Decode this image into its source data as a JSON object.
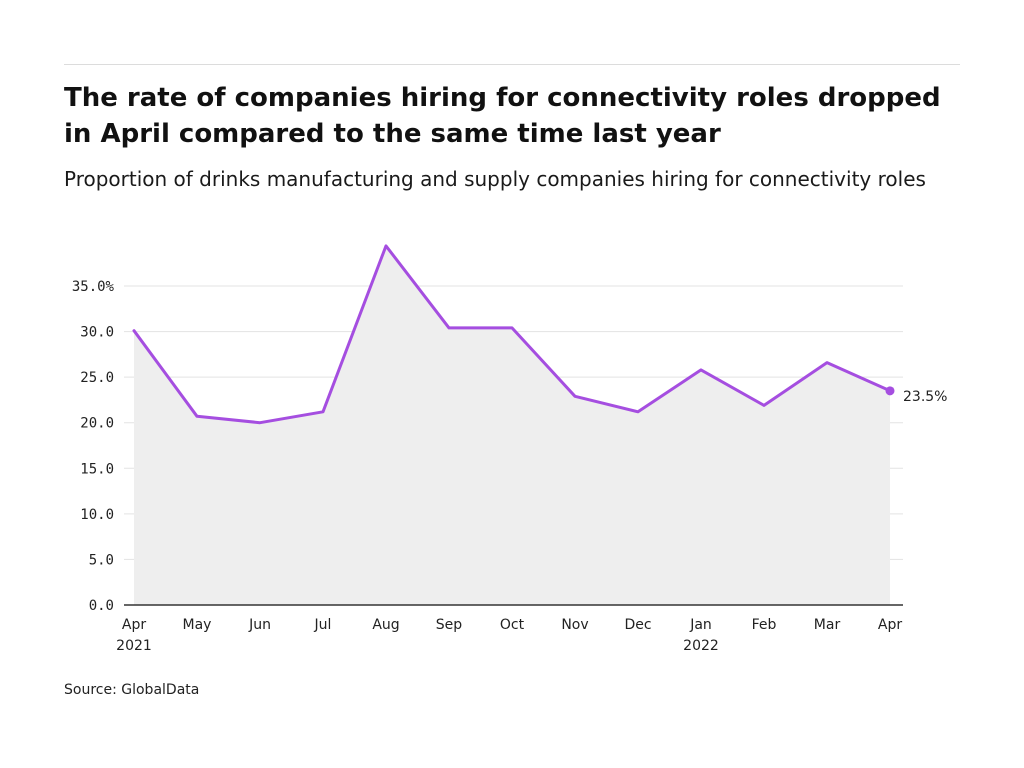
{
  "header": {
    "title": "The rate of companies hiring for connectivity roles dropped in April compared to the same time last year",
    "subtitle": "Proportion of drinks manufacturing and supply companies hiring for connectivity roles"
  },
  "footer": {
    "source": "Source: GlobalData"
  },
  "colors": {
    "line": "#a54ee0",
    "area": "#eeeeee",
    "grid": "#e3e3e3",
    "axis": "#333333"
  },
  "chart_data": {
    "type": "area",
    "title": "The rate of companies hiring for connectivity roles dropped in April compared to the same time last year",
    "subtitle": "Proportion of drinks manufacturing and supply companies hiring for connectivity roles",
    "xlabel": "",
    "ylabel": "",
    "categories": [
      "Apr",
      "May",
      "Jun",
      "Jul",
      "Aug",
      "Sep",
      "Oct",
      "Nov",
      "Dec",
      "Jan",
      "Feb",
      "Mar",
      "Apr"
    ],
    "category_sublabels": [
      "2021",
      "",
      "",
      "",
      "",
      "",
      "",
      "",
      "",
      "2022",
      "",
      "",
      ""
    ],
    "series": [
      {
        "values": [
          30.1,
          20.7,
          20.0,
          21.2,
          39.4,
          30.4,
          30.4,
          22.9,
          21.2,
          25.8,
          21.9,
          26.6,
          23.5
        ]
      }
    ],
    "ylim": [
      0,
      35.0
    ],
    "yticks": [
      "0.0",
      "5.0",
      "10.0",
      "15.0",
      "20.0",
      "25.0",
      "30.0",
      "35.0%"
    ],
    "end_label": "23.5%",
    "grid": true,
    "legend": "none"
  }
}
